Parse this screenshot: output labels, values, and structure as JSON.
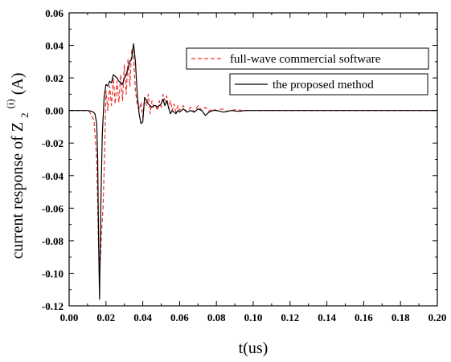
{
  "chart_data": {
    "type": "line",
    "xlabel": "t(us)",
    "ylabel": {
      "prefix": "current response of Z",
      "subscript": "2",
      "superscript": "(i)",
      "suffix": "(A)"
    },
    "xlim": [
      0.0,
      0.2
    ],
    "ylim": [
      -0.12,
      0.06
    ],
    "x_ticks": [
      "0.00",
      "0.02",
      "0.04",
      "0.06",
      "0.08",
      "0.10",
      "0.12",
      "0.14",
      "0.16",
      "0.18",
      "0.20"
    ],
    "y_ticks": [
      "0.06",
      "0.04",
      "0.02",
      "0.00",
      "-0.02",
      "-0.04",
      "-0.06",
      "-0.08",
      "-0.10",
      "-0.12"
    ],
    "grid": false,
    "legend_position": "top-right",
    "series": [
      {
        "name": "full-wave commercial software",
        "color": "#e8312f",
        "style": "dashed",
        "x": [
          0.0,
          0.008,
          0.011,
          0.0135,
          0.015,
          0.016,
          0.0168,
          0.0176,
          0.0184,
          0.0192,
          0.02,
          0.021,
          0.022,
          0.023,
          0.024,
          0.025,
          0.026,
          0.027,
          0.028,
          0.029,
          0.03,
          0.031,
          0.032,
          0.033,
          0.034,
          0.035,
          0.036,
          0.037,
          0.038,
          0.039,
          0.04,
          0.041,
          0.042,
          0.043,
          0.044,
          0.045,
          0.046,
          0.047,
          0.048,
          0.049,
          0.05,
          0.051,
          0.052,
          0.053,
          0.054,
          0.055,
          0.056,
          0.057,
          0.058,
          0.059,
          0.06,
          0.062,
          0.064,
          0.066,
          0.068,
          0.07,
          0.072,
          0.074,
          0.076,
          0.078,
          0.08,
          0.083,
          0.086,
          0.09,
          0.095,
          0.1,
          0.11,
          0.12,
          0.14,
          0.16,
          0.18,
          0.2
        ],
        "y": [
          0.0,
          0.0,
          -0.0005,
          -0.006,
          -0.03,
          -0.085,
          -0.095,
          -0.075,
          -0.06,
          -0.03,
          0.012,
          0.0,
          0.015,
          0.003,
          0.02,
          0.004,
          0.018,
          0.005,
          0.022,
          0.006,
          0.028,
          0.01,
          0.032,
          0.015,
          0.038,
          0.034,
          0.012,
          0.004,
          0.0,
          0.005,
          -0.004,
          0.008,
          0.003,
          0.01,
          -0.002,
          0.006,
          0.002,
          0.003,
          0.0,
          0.006,
          0.002,
          0.01,
          0.006,
          0.009,
          0.001,
          0.006,
          0.0,
          0.004,
          -0.001,
          0.003,
          0.0,
          0.003,
          -0.001,
          0.002,
          -0.001,
          0.003,
          0.0,
          0.002,
          -0.0005,
          0.001,
          0.0,
          0.001,
          -0.0005,
          0.0005,
          0.0,
          0.0,
          0.0,
          0.0,
          0.0,
          0.0,
          0.0,
          0.0
        ]
      },
      {
        "name": "the proposed method",
        "color": "#000000",
        "style": "solid",
        "x": [
          0.0,
          0.01,
          0.0125,
          0.014,
          0.015,
          0.0155,
          0.016,
          0.0165,
          0.0172,
          0.018,
          0.019,
          0.02,
          0.021,
          0.022,
          0.023,
          0.024,
          0.025,
          0.026,
          0.027,
          0.028,
          0.029,
          0.03,
          0.031,
          0.032,
          0.033,
          0.034,
          0.035,
          0.036,
          0.037,
          0.038,
          0.039,
          0.04,
          0.041,
          0.042,
          0.043,
          0.044,
          0.045,
          0.046,
          0.047,
          0.048,
          0.049,
          0.05,
          0.051,
          0.052,
          0.053,
          0.054,
          0.055,
          0.056,
          0.057,
          0.058,
          0.059,
          0.06,
          0.062,
          0.064,
          0.066,
          0.068,
          0.07,
          0.072,
          0.074,
          0.076,
          0.078,
          0.08,
          0.084,
          0.088,
          0.092,
          0.096,
          0.1,
          0.11,
          0.12,
          0.14,
          0.16,
          0.18,
          0.2
        ],
        "y": [
          0.0,
          0.0,
          -0.0005,
          -0.002,
          -0.008,
          -0.03,
          -0.08,
          -0.116,
          -0.06,
          -0.015,
          0.008,
          0.016,
          0.015,
          0.018,
          0.017,
          0.022,
          0.021,
          0.02,
          0.018,
          0.017,
          0.016,
          0.02,
          0.022,
          0.026,
          0.03,
          0.032,
          0.041,
          0.03,
          0.01,
          -0.002,
          -0.008,
          -0.007,
          0.008,
          0.006,
          0.004,
          0.003,
          0.002,
          0.003,
          0.003,
          0.002,
          0.003,
          0.004,
          0.007,
          0.003,
          0.006,
          0.002,
          -0.002,
          0.0,
          -0.001,
          -0.002,
          0.0,
          -0.001,
          0.001,
          -0.001,
          0.0,
          -0.001,
          0.001,
          0.0,
          -0.003,
          -0.001,
          0.0,
          0.0,
          -0.001,
          0.0,
          -0.0005,
          0.0,
          0.0,
          0.0,
          0.0,
          0.0,
          0.0,
          0.0,
          0.0
        ]
      }
    ]
  }
}
